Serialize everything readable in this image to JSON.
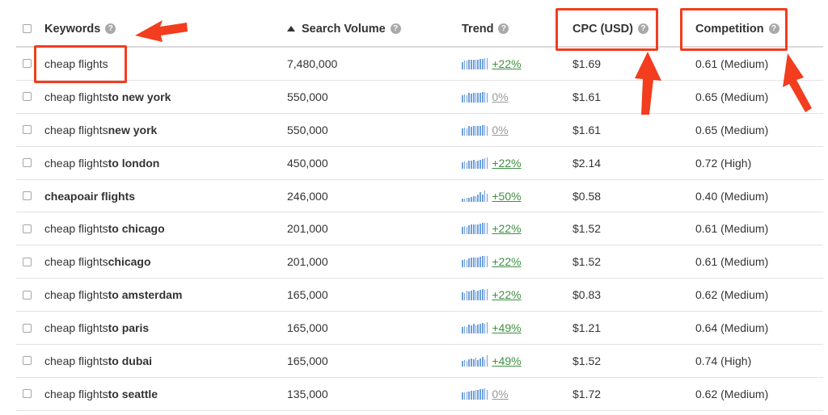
{
  "colors": {
    "accent_red": "#f23d1e",
    "spark_blue": "#6fa0dc",
    "trend_up_green": "#3e9040",
    "trend_flat_gray": "#9a9a9a"
  },
  "header": {
    "keywords": "Keywords",
    "search_volume": "Search Volume",
    "trend": "Trend",
    "cpc": "CPC (USD)",
    "competition": "Competition",
    "help_icon": "?",
    "sort_icon": "sort-ascending-icon"
  },
  "rows": [
    {
      "kw": "cheap flights",
      "kw_bold": "",
      "volume": "7,480,000",
      "trend": "+22%",
      "trend_dir": "up",
      "spark": [
        9,
        11,
        11,
        12,
        12,
        12,
        12,
        12,
        13,
        13,
        14,
        14
      ],
      "cpc": "$1.69",
      "competition": "0.61 (Medium)"
    },
    {
      "kw": "cheap flights ",
      "kw_bold": "to new york",
      "volume": "550,000",
      "trend": "0%",
      "trend_dir": "flat",
      "spark": [
        9,
        10,
        9,
        12,
        11,
        12,
        12,
        12,
        12,
        13,
        13,
        12
      ],
      "cpc": "$1.61",
      "competition": "0.65 (Medium)"
    },
    {
      "kw": "cheap flights ",
      "kw_bold": "new york",
      "volume": "550,000",
      "trend": "0%",
      "trend_dir": "flat",
      "spark": [
        9,
        10,
        9,
        12,
        11,
        12,
        12,
        12,
        12,
        13,
        13,
        12
      ],
      "cpc": "$1.61",
      "competition": "0.65 (Medium)"
    },
    {
      "kw": "cheap flights ",
      "kw_bold": "to london",
      "volume": "450,000",
      "trend": "+22%",
      "trend_dir": "up",
      "spark": [
        8,
        9,
        8,
        10,
        10,
        11,
        9,
        10,
        11,
        12,
        13,
        14
      ],
      "cpc": "$2.14",
      "competition": "0.72 (High)"
    },
    {
      "kw": "",
      "kw_bold": "cheapoair flights",
      "volume": "246,000",
      "trend": "+50%",
      "trend_dir": "up",
      "spark": [
        4,
        4,
        5,
        5,
        6,
        7,
        7,
        9,
        12,
        9,
        14,
        10
      ],
      "cpc": "$0.58",
      "competition": "0.40 (Medium)"
    },
    {
      "kw": "cheap flights ",
      "kw_bold": "to chicago",
      "volume": "201,000",
      "trend": "+22%",
      "trend_dir": "up",
      "spark": [
        9,
        10,
        9,
        11,
        12,
        12,
        12,
        12,
        13,
        14,
        14,
        14
      ],
      "cpc": "$1.52",
      "competition": "0.61 (Medium)"
    },
    {
      "kw": "cheap flights ",
      "kw_bold": "chicago",
      "volume": "201,000",
      "trend": "+22%",
      "trend_dir": "up",
      "spark": [
        9,
        10,
        9,
        11,
        12,
        12,
        12,
        12,
        13,
        14,
        14,
        14
      ],
      "cpc": "$1.52",
      "competition": "0.61 (Medium)"
    },
    {
      "kw": "cheap flights ",
      "kw_bold": "to amsterdam",
      "volume": "165,000",
      "trend": "+22%",
      "trend_dir": "up",
      "spark": [
        10,
        9,
        12,
        11,
        12,
        13,
        11,
        12,
        13,
        14,
        13,
        14
      ],
      "cpc": "$0.83",
      "competition": "0.62 (Medium)"
    },
    {
      "kw": "cheap flights ",
      "kw_bold": "to paris",
      "volume": "165,000",
      "trend": "+49%",
      "trend_dir": "up",
      "spark": [
        8,
        9,
        8,
        11,
        10,
        12,
        10,
        11,
        12,
        13,
        12,
        14
      ],
      "cpc": "$1.21",
      "competition": "0.64 (Medium)"
    },
    {
      "kw": "cheap flights ",
      "kw_bold": "to dubai",
      "volume": "165,000",
      "trend": "+49%",
      "trend_dir": "up",
      "spark": [
        7,
        8,
        7,
        9,
        10,
        9,
        11,
        8,
        10,
        12,
        9,
        14
      ],
      "cpc": "$1.52",
      "competition": "0.74 (High)"
    },
    {
      "kw": "cheap flights ",
      "kw_bold": "to seattle",
      "volume": "135,000",
      "trend": "0%",
      "trend_dir": "flat",
      "spark": [
        9,
        9,
        10,
        10,
        11,
        11,
        12,
        12,
        13,
        13,
        14,
        12
      ],
      "cpc": "$1.72",
      "competition": "0.62 (Medium)"
    }
  ]
}
